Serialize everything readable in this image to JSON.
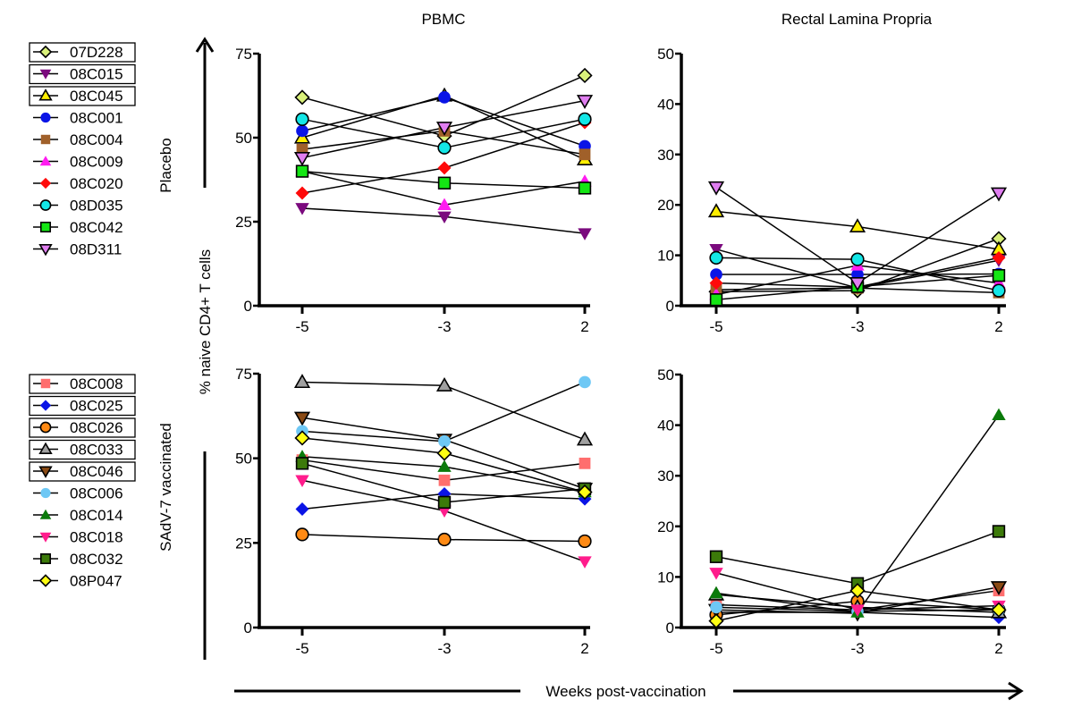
{
  "figure": {
    "y_axis_title": "% naive CD4+ T cells",
    "x_axis_title": "Weeks post-vaccination",
    "column_titles": [
      "PBMC",
      "Rectal Lamina Propria"
    ],
    "row_titles": [
      "Placebo",
      "SAdV-7 vaccinated"
    ]
  },
  "legends": [
    {
      "group": "Placebo",
      "items": [
        {
          "id": "07D228",
          "marker": "diamond",
          "color": "#d9f07a",
          "outline": true,
          "boxed": true
        },
        {
          "id": "08C015",
          "marker": "triangle-down",
          "color": "#7b0a7e",
          "outline": false,
          "boxed": true
        },
        {
          "id": "08C045",
          "marker": "triangle-up",
          "color": "#ffee00",
          "outline": true,
          "boxed": true
        },
        {
          "id": "08C001",
          "marker": "circle",
          "color": "#0a14e6",
          "outline": false,
          "boxed": false
        },
        {
          "id": "08C004",
          "marker": "square",
          "color": "#a0602a",
          "outline": false,
          "boxed": false
        },
        {
          "id": "08C009",
          "marker": "triangle-up",
          "color": "#ff1cf0",
          "outline": false,
          "boxed": false
        },
        {
          "id": "08C020",
          "marker": "diamond",
          "color": "#ff0a0a",
          "outline": false,
          "boxed": false
        },
        {
          "id": "08D035",
          "marker": "circle",
          "color": "#14e6e6",
          "outline": true,
          "boxed": false
        },
        {
          "id": "08C042",
          "marker": "square",
          "color": "#14e614",
          "outline": true,
          "boxed": false
        },
        {
          "id": "08D311",
          "marker": "triangle-down",
          "color": "#e07ef0",
          "outline": true,
          "boxed": false
        }
      ]
    },
    {
      "group": "SAdV-7 vaccinated",
      "items": [
        {
          "id": "08C008",
          "marker": "square",
          "color": "#ff6e6e",
          "outline": false,
          "boxed": true
        },
        {
          "id": "08C025",
          "marker": "diamond",
          "color": "#0a14e6",
          "outline": false,
          "boxed": true
        },
        {
          "id": "08C026",
          "marker": "circle",
          "color": "#ff8a14",
          "outline": true,
          "boxed": true
        },
        {
          "id": "08C033",
          "marker": "triangle-up",
          "color": "#a0a0a0",
          "outline": true,
          "boxed": true
        },
        {
          "id": "08C046",
          "marker": "triangle-down",
          "color": "#8a4a14",
          "outline": true,
          "boxed": true
        },
        {
          "id": "08C006",
          "marker": "circle",
          "color": "#6ec8f5",
          "outline": false,
          "boxed": false
        },
        {
          "id": "08C014",
          "marker": "triangle-up",
          "color": "#0a7a0a",
          "outline": false,
          "boxed": false
        },
        {
          "id": "08C018",
          "marker": "triangle-down",
          "color": "#ff1c8c",
          "outline": false,
          "boxed": false
        },
        {
          "id": "08C032",
          "marker": "square",
          "color": "#3c7a0a",
          "outline": true,
          "boxed": false
        },
        {
          "id": "08P047",
          "marker": "diamond",
          "color": "#ffff14",
          "outline": true,
          "boxed": false
        }
      ]
    }
  ],
  "chart_data": [
    {
      "type": "line",
      "panel": "placebo-pbmc",
      "group": "Placebo",
      "title": "PBMC",
      "xlabel": "Weeks post-vaccination",
      "ylabel": "% naive CD4+ T cells",
      "x": [
        -5,
        -3,
        2
      ],
      "x_tick_labels": [
        "-5",
        "-3",
        "2"
      ],
      "show_x_tick_labels": true,
      "ylim": [
        0,
        75
      ],
      "y_ticks": [
        0,
        25,
        50,
        75
      ],
      "grid": false,
      "series": [
        {
          "name": "07D228",
          "values": [
            62,
            50.5,
            68.5
          ]
        },
        {
          "name": "08C015",
          "values": [
            29,
            26.5,
            21.5
          ]
        },
        {
          "name": "08C045",
          "values": [
            50,
            62.5,
            43.5
          ]
        },
        {
          "name": "08C001",
          "values": [
            52,
            62,
            47.5
          ]
        },
        {
          "name": "08C004",
          "values": [
            46.5,
            52,
            45
          ]
        },
        {
          "name": "08C009",
          "values": [
            40,
            30,
            37
          ]
        },
        {
          "name": "08C020",
          "values": [
            33.5,
            41,
            54.5
          ]
        },
        {
          "name": "08D035",
          "values": [
            55.5,
            47,
            55.5
          ]
        },
        {
          "name": "08C042",
          "values": [
            40,
            36.5,
            35
          ]
        },
        {
          "name": "08D311",
          "values": [
            44,
            53,
            61
          ]
        }
      ]
    },
    {
      "type": "line",
      "panel": "placebo-rlp",
      "group": "Placebo",
      "title": "Rectal Lamina Propria",
      "xlabel": "Weeks post-vaccination",
      "ylabel": "% naive CD4+ T cells",
      "x": [
        -5,
        -3,
        2
      ],
      "x_tick_labels": [
        "-5",
        "-3",
        "2"
      ],
      "show_x_tick_labels": true,
      "ylim": [
        0,
        50
      ],
      "y_ticks": [
        0,
        10,
        20,
        30,
        40,
        50
      ],
      "grid": false,
      "series": [
        {
          "name": "07D228",
          "values": [
            2.8,
            3,
            13.3
          ]
        },
        {
          "name": "08C015",
          "values": [
            11.2,
            3.5,
            9
          ]
        },
        {
          "name": "08C045",
          "values": [
            18.7,
            15.7,
            11.2
          ]
        },
        {
          "name": "08C001",
          "values": [
            6.2,
            6.2,
            6.3
          ]
        },
        {
          "name": "08C004",
          "values": [
            3.2,
            3.5,
            2.6
          ]
        },
        {
          "name": "08C009",
          "values": [
            2.2,
            8,
            4.5
          ]
        },
        {
          "name": "08C020",
          "values": [
            4.5,
            3.7,
            9.5
          ]
        },
        {
          "name": "08D035",
          "values": [
            9.5,
            9.2,
            3
          ]
        },
        {
          "name": "08C042",
          "values": [
            1.2,
            3.8,
            6
          ]
        },
        {
          "name": "08D311",
          "values": [
            23.5,
            4.5,
            22.3
          ]
        }
      ]
    },
    {
      "type": "line",
      "panel": "vaccinated-pbmc",
      "group": "SAdV-7 vaccinated",
      "title": "",
      "xlabel": "Weeks post-vaccination",
      "ylabel": "% naive CD4+ T cells",
      "x": [
        -5,
        -3,
        2
      ],
      "x_tick_labels": [
        "-5",
        "-3",
        "2"
      ],
      "show_x_tick_labels": true,
      "ylim": [
        0,
        75
      ],
      "y_ticks": [
        0,
        25,
        50,
        75
      ],
      "grid": false,
      "series": [
        {
          "name": "08C008",
          "values": [
            49.5,
            43.5,
            48.5
          ]
        },
        {
          "name": "08C025",
          "values": [
            35,
            39.5,
            38
          ]
        },
        {
          "name": "08C026",
          "values": [
            27.5,
            26,
            25.5
          ]
        },
        {
          "name": "08C033",
          "values": [
            72.5,
            71.5,
            55.5
          ]
        },
        {
          "name": "08C046",
          "values": [
            62,
            55.5,
            41
          ]
        },
        {
          "name": "08C006",
          "values": [
            58,
            55,
            72.5
          ]
        },
        {
          "name": "08C014",
          "values": [
            50.5,
            47.5,
            40
          ]
        },
        {
          "name": "08C018",
          "values": [
            43.5,
            34.5,
            19.5
          ]
        },
        {
          "name": "08C032",
          "values": [
            48.5,
            37,
            41
          ]
        },
        {
          "name": "08P047",
          "values": [
            56,
            51.5,
            40
          ]
        }
      ]
    },
    {
      "type": "line",
      "panel": "vaccinated-rlp",
      "group": "SAdV-7 vaccinated",
      "title": "",
      "xlabel": "Weeks post-vaccination",
      "ylabel": "% naive CD4+ T cells",
      "x": [
        -5,
        -3,
        2
      ],
      "x_tick_labels": [
        "-5",
        "-3",
        "2"
      ],
      "show_x_tick_labels": true,
      "ylim": [
        0,
        50
      ],
      "y_ticks": [
        0,
        10,
        20,
        30,
        40,
        50
      ],
      "grid": false,
      "series": [
        {
          "name": "08C008",
          "values": [
            4.5,
            3.5,
            7.3
          ]
        },
        {
          "name": "08C025",
          "values": [
            3,
            3,
            2
          ]
        },
        {
          "name": "08C026",
          "values": [
            2.5,
            5.2,
            3.5
          ]
        },
        {
          "name": "08C033",
          "values": [
            6.5,
            4,
            3
          ]
        },
        {
          "name": "08C046",
          "values": [
            3.5,
            2.8,
            8
          ]
        },
        {
          "name": "08C006",
          "values": [
            4,
            3.2,
            3.5
          ]
        },
        {
          "name": "08C014",
          "values": [
            6.8,
            3,
            42
          ]
        },
        {
          "name": "08C018",
          "values": [
            10.8,
            3.5,
            4.3
          ]
        },
        {
          "name": "08C032",
          "values": [
            14,
            8.7,
            19
          ]
        },
        {
          "name": "08P047",
          "values": [
            1.3,
            7.3,
            3.5
          ]
        }
      ]
    }
  ]
}
